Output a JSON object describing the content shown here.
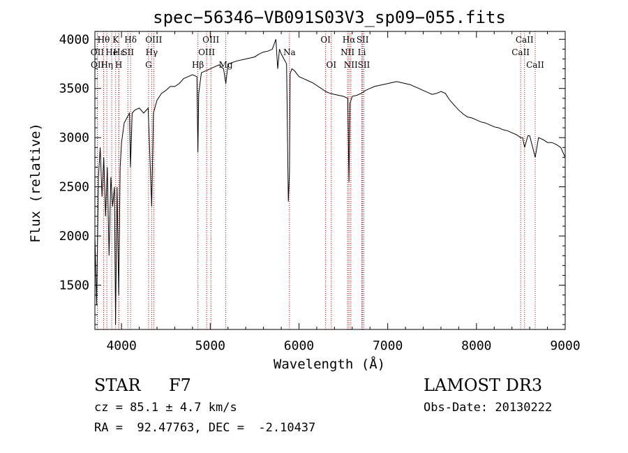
{
  "chart_data": {
    "type": "line",
    "title": "spec−56346−VB091S03V3_sp09−055.fits",
    "xlabel": "Wavelength (Å)",
    "ylabel": "Flux (relative)",
    "xlim": [
      3700,
      9000
    ],
    "ylim": [
      1050,
      4080
    ],
    "xticks": [
      4000,
      5000,
      6000,
      7000,
      8000,
      9000
    ],
    "yticks": [
      1500,
      2000,
      2500,
      3000,
      3500,
      4000
    ],
    "series": [
      {
        "name": "flux",
        "x": [
          3700,
          3720,
          3740,
          3760,
          3780,
          3800,
          3820,
          3840,
          3860,
          3880,
          3900,
          3920,
          3933,
          3950,
          3968,
          3985,
          4000,
          4030,
          4060,
          4090,
          4101,
          4120,
          4150,
          4200,
          4250,
          4300,
          4340,
          4360,
          4400,
          4450,
          4500,
          4550,
          4600,
          4650,
          4700,
          4750,
          4800,
          4850,
          4861,
          4870,
          4900,
          4950,
          5000,
          5050,
          5100,
          5150,
          5175,
          5200,
          5300,
          5400,
          5500,
          5550,
          5600,
          5650,
          5700,
          5740,
          5760,
          5780,
          5800,
          5830,
          5860,
          5880,
          5893,
          5900,
          5920,
          5950,
          6000,
          6050,
          6100,
          6150,
          6200,
          6250,
          6300,
          6350,
          6400,
          6450,
          6500,
          6550,
          6563,
          6575,
          6600,
          6650,
          6700,
          6750,
          6800,
          6850,
          6900,
          6950,
          7000,
          7050,
          7100,
          7150,
          7200,
          7250,
          7300,
          7350,
          7400,
          7450,
          7500,
          7550,
          7600,
          7650,
          7700,
          7750,
          7800,
          7850,
          7900,
          7950,
          8000,
          8050,
          8100,
          8150,
          8200,
          8250,
          8300,
          8350,
          8400,
          8450,
          8498,
          8520,
          8542,
          8580,
          8600,
          8662,
          8700,
          8750,
          8800,
          8850,
          8900,
          8950,
          9000
        ],
        "y": [
          2000,
          1300,
          2600,
          2900,
          2400,
          2800,
          2200,
          2700,
          1800,
          2600,
          2300,
          2500,
          1100,
          2500,
          1400,
          2700,
          2950,
          3150,
          3200,
          3250,
          2700,
          3250,
          3280,
          3300,
          3250,
          3300,
          2300,
          3250,
          3380,
          3450,
          3480,
          3520,
          3520,
          3550,
          3600,
          3620,
          3640,
          3620,
          2850,
          3450,
          3660,
          3680,
          3700,
          3720,
          3740,
          3700,
          3550,
          3750,
          3780,
          3800,
          3820,
          3850,
          3870,
          3880,
          3900,
          4000,
          3700,
          3900,
          3850,
          3800,
          3750,
          2350,
          2650,
          3650,
          3700,
          3680,
          3620,
          3600,
          3580,
          3560,
          3530,
          3500,
          3470,
          3450,
          3440,
          3430,
          3420,
          3400,
          2550,
          3350,
          3420,
          3430,
          3450,
          3480,
          3500,
          3520,
          3530,
          3540,
          3550,
          3560,
          3570,
          3560,
          3550,
          3540,
          3520,
          3500,
          3480,
          3460,
          3440,
          3450,
          3470,
          3450,
          3380,
          3330,
          3280,
          3240,
          3210,
          3200,
          3180,
          3160,
          3150,
          3130,
          3110,
          3100,
          3080,
          3070,
          3050,
          3030,
          3000,
          3000,
          2900,
          3020,
          3020,
          2800,
          3000,
          2980,
          2950,
          2950,
          2930,
          2900,
          2800
        ]
      }
    ],
    "lines": [
      {
        "label": "Hθ",
        "x": 3798,
        "row": 1
      },
      {
        "label": "OII",
        "x": 3727,
        "row": 2
      },
      {
        "label": "OII",
        "x": 3729,
        "row": 3
      },
      {
        "label": "He",
        "x": 3889,
        "row": 2
      },
      {
        "label": "Hη",
        "x": 3835,
        "row": 3
      },
      {
        "label": "K",
        "x": 3934,
        "row": 1
      },
      {
        "label": "Hε",
        "x": 3970,
        "row": 2
      },
      {
        "label": "H",
        "x": 3968,
        "row": 3
      },
      {
        "label": "Hδ",
        "x": 4102,
        "row": 1
      },
      {
        "label": "SII",
        "x": 4072,
        "row": 2
      },
      {
        "label": "OIII",
        "x": 4363,
        "row": 1
      },
      {
        "label": "Hγ",
        "x": 4340,
        "row": 2
      },
      {
        "label": "G",
        "x": 4305,
        "row": 3
      },
      {
        "label": "OIII",
        "x": 5007,
        "row": 1
      },
      {
        "label": "OIII",
        "x": 4959,
        "row": 2
      },
      {
        "label": "Hβ",
        "x": 4861,
        "row": 3
      },
      {
        "label": "Mg",
        "x": 5175,
        "row": 3
      },
      {
        "label": "Na",
        "x": 5893,
        "row": 2
      },
      {
        "label": "OI",
        "x": 6300,
        "row": 1
      },
      {
        "label": "OI",
        "x": 6364,
        "row": 3
      },
      {
        "label": "Hα",
        "x": 6563,
        "row": 1
      },
      {
        "label": "SII",
        "x": 6717,
        "row": 1
      },
      {
        "label": "NII",
        "x": 6548,
        "row": 2
      },
      {
        "label": "Li",
        "x": 6708,
        "row": 2
      },
      {
        "label": "NII",
        "x": 6584,
        "row": 3
      },
      {
        "label": "SII",
        "x": 6731,
        "row": 3
      },
      {
        "label": "CaII",
        "x": 8542,
        "row": 1
      },
      {
        "label": "CaII",
        "x": 8498,
        "row": 2
      },
      {
        "label": "CaII",
        "x": 8662,
        "row": 3
      }
    ]
  },
  "info": {
    "class_label": "STAR",
    "subclass": "F7",
    "survey": "LAMOST DR3",
    "redshift": "cz = 85.1 ± 4.7 km/s",
    "obs_date": "Obs-Date: 20130222",
    "coords": "RA =  92.47763, DEC =  -2.10437"
  }
}
